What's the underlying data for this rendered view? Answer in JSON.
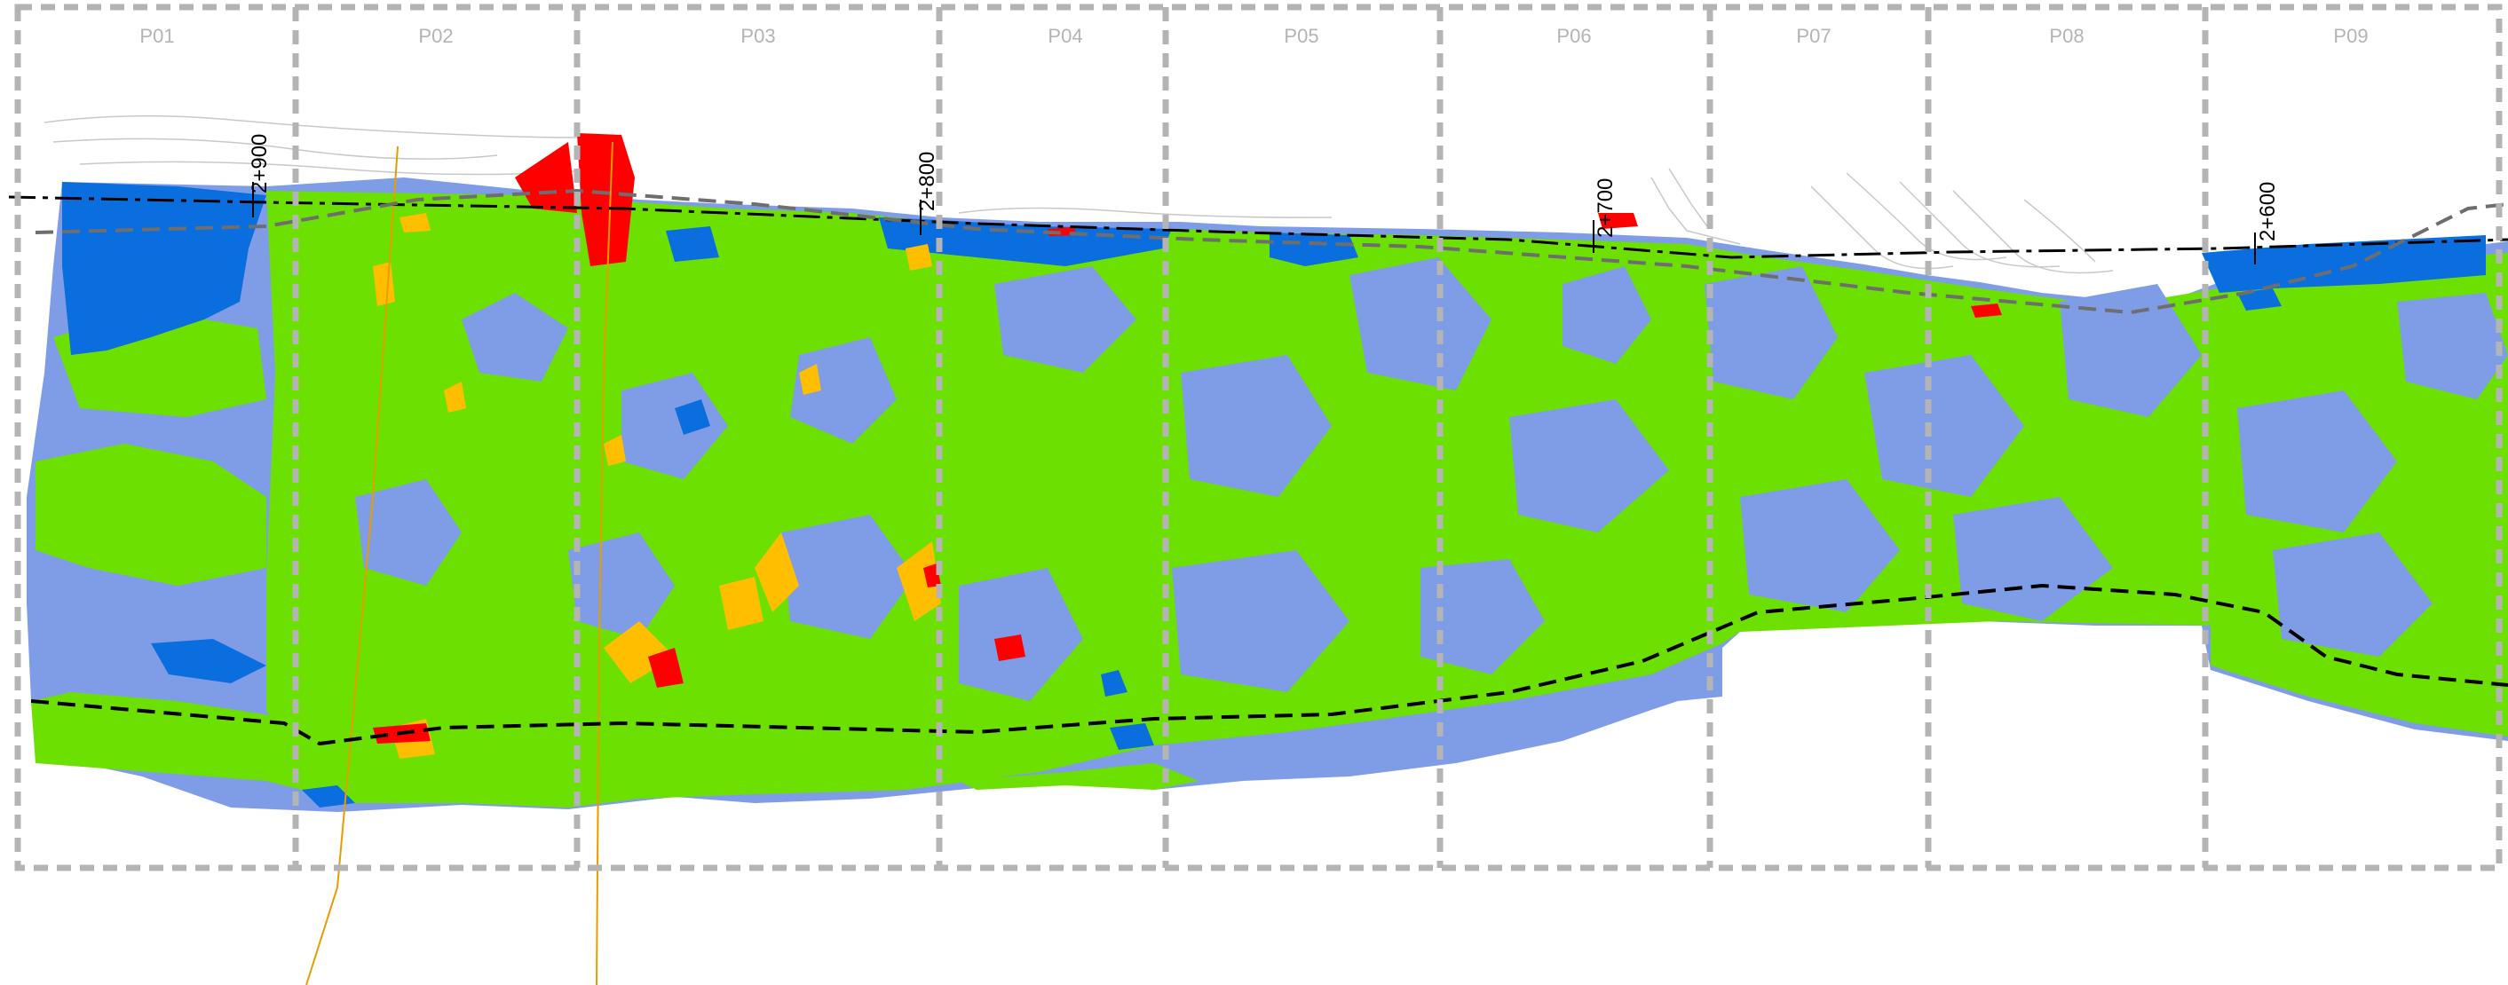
{
  "panels": [
    "P01",
    "P02",
    "P03",
    "P04",
    "P05",
    "P06",
    "P07",
    "P08",
    "P09"
  ],
  "chainages": [
    "2+900",
    "2+800",
    "2+700",
    "2+600"
  ],
  "legend_colors": {
    "dark_blue": "#0a6ede",
    "light_blue": "#7f9de6",
    "green": "#6ce000",
    "orange": "#ffbe00",
    "red": "#ff0000"
  },
  "frame_color": "#b4b4b4"
}
